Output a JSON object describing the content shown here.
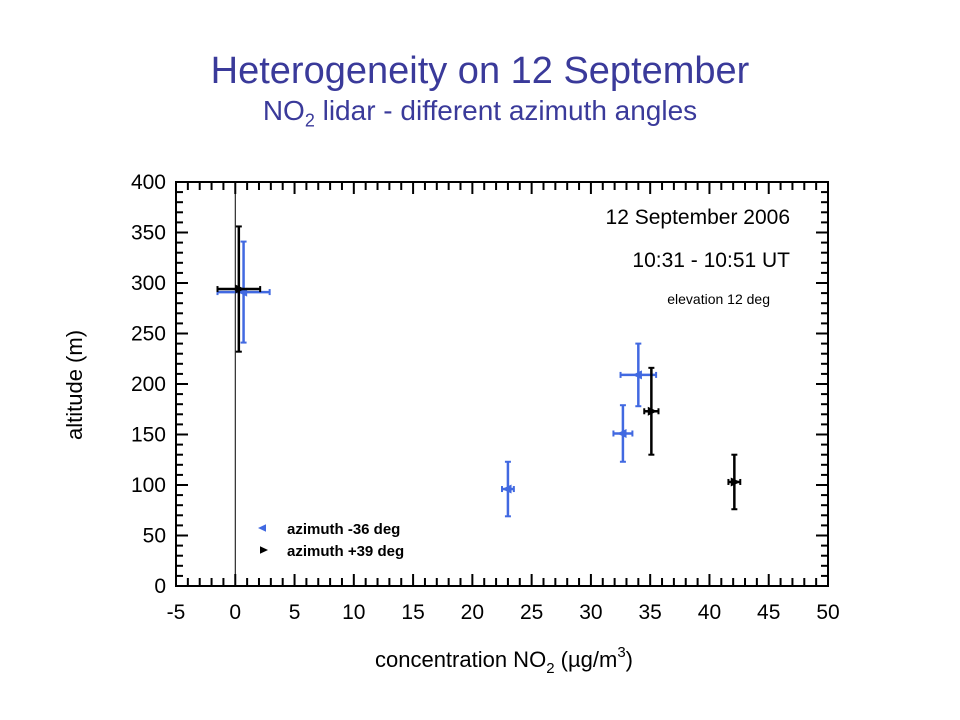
{
  "slide": {
    "title": "Heterogeneity on 12 September",
    "subtitle_prefix": "NO",
    "subtitle_sub": "2",
    "subtitle_suffix": " lidar - different azimuth angles"
  },
  "chart_data": {
    "type": "scatter",
    "xlabel_prefix": "concentration NO",
    "xlabel_sub": "2",
    "xlabel_unit": " (µg/m",
    "xlabel_sup": "3",
    "xlabel_close": ")",
    "ylabel": "altitude (m)",
    "xlim": [
      -5,
      50
    ],
    "ylim": [
      0,
      400
    ],
    "xticks": [
      -5,
      0,
      5,
      10,
      15,
      20,
      25,
      30,
      35,
      40,
      45,
      50
    ],
    "yticks": [
      0,
      50,
      100,
      150,
      200,
      250,
      300,
      350,
      400
    ],
    "vertical_reference_x": 0,
    "annotations": {
      "date": "12 September 2006",
      "time": "10:31 - 10:51 UT",
      "elevation": "elevation 12 deg"
    },
    "legend_position": "bottom-left",
    "series": [
      {
        "name": "azimuth -36 deg",
        "color": "#4169e1",
        "marker": "triangle-left",
        "points": [
          {
            "x": 0.7,
            "y": 291,
            "xerr": 2.2,
            "yerr": 50
          },
          {
            "x": 23.0,
            "y": 96,
            "xerr": 0.5,
            "yerr": 27
          },
          {
            "x": 32.7,
            "y": 151,
            "xerr": 0.8,
            "yerr": 28
          },
          {
            "x": 34.0,
            "y": 209,
            "xerr": 1.5,
            "yerr": 31
          }
        ]
      },
      {
        "name": "azimuth +39 deg",
        "color": "#000000",
        "marker": "triangle-right",
        "points": [
          {
            "x": 0.3,
            "y": 294,
            "xerr": 1.8,
            "yerr": 62
          },
          {
            "x": 35.1,
            "y": 173,
            "xerr": 0.6,
            "yerr": 43
          },
          {
            "x": 42.1,
            "y": 103,
            "xerr": 0.5,
            "yerr": 27
          }
        ]
      }
    ]
  }
}
